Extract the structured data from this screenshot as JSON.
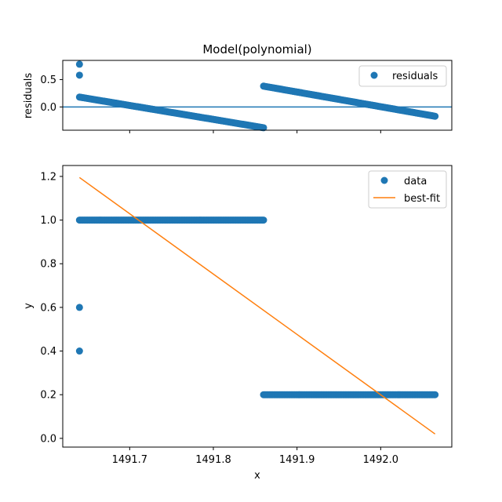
{
  "chart_data": [
    {
      "type": "scatter",
      "title": "Model(polynomial)",
      "xlabel": "",
      "ylabel": "residuals",
      "xlim": [
        1491.62,
        1492.085
      ],
      "ylim": [
        -0.425,
        0.85
      ],
      "yticks": [
        0.0,
        0.5
      ],
      "xticks": [
        1491.7,
        1491.8,
        1491.9,
        1492.0
      ],
      "xtick_labels_visible": false,
      "hline": 0.0,
      "legend": {
        "placement": "top-right",
        "entries": [
          {
            "label": "residuals",
            "marker": "circle",
            "color": "#1f77b4"
          }
        ]
      },
      "grid": false,
      "series": [
        {
          "name": "residuals",
          "color": "#1f77b4",
          "marker": "circle",
          "isolated_points": [
            {
              "x": 1491.64,
              "y": 0.78
            },
            {
              "x": 1491.64,
              "y": 0.58
            }
          ],
          "segments": [
            {
              "x_start": 1491.64,
              "y_start": 0.18,
              "x_end": 1491.86,
              "y_end": -0.38,
              "n": 160
            },
            {
              "x_start": 1491.86,
              "y_start": 0.38,
              "x_end": 1492.065,
              "y_end": -0.17,
              "n": 150
            }
          ]
        }
      ]
    },
    {
      "type": "scatter",
      "title": "",
      "xlabel": "x",
      "ylabel": "y",
      "xlim": [
        1491.62,
        1492.085
      ],
      "ylim": [
        -0.04,
        1.25
      ],
      "yticks": [
        0.0,
        0.2,
        0.4,
        0.6,
        0.8,
        1.0,
        1.2
      ],
      "xticks": [
        1491.7,
        1491.8,
        1491.9,
        1492.0
      ],
      "legend": {
        "placement": "top-right",
        "entries": [
          {
            "label": "data",
            "marker": "circle",
            "color": "#1f77b4"
          },
          {
            "label": "best-fit",
            "marker": "line",
            "color": "#ff7f0e"
          }
        ]
      },
      "grid": false,
      "series": [
        {
          "name": "data",
          "color": "#1f77b4",
          "marker": "circle",
          "isolated_points": [
            {
              "x": 1491.64,
              "y": 0.6
            },
            {
              "x": 1491.64,
              "y": 0.4
            }
          ],
          "segments": [
            {
              "x_start": 1491.64,
              "y_start": 1.0,
              "x_end": 1491.86,
              "y_end": 1.0,
              "n": 160
            },
            {
              "x_start": 1491.86,
              "y_start": 0.2,
              "x_end": 1492.065,
              "y_end": 0.2,
              "n": 150
            }
          ]
        },
        {
          "name": "best-fit",
          "color": "#ff7f0e",
          "marker": "line",
          "line": [
            {
              "x": 1491.64,
              "y": 1.195
            },
            {
              "x": 1492.065,
              "y": 0.02
            }
          ]
        }
      ]
    }
  ]
}
